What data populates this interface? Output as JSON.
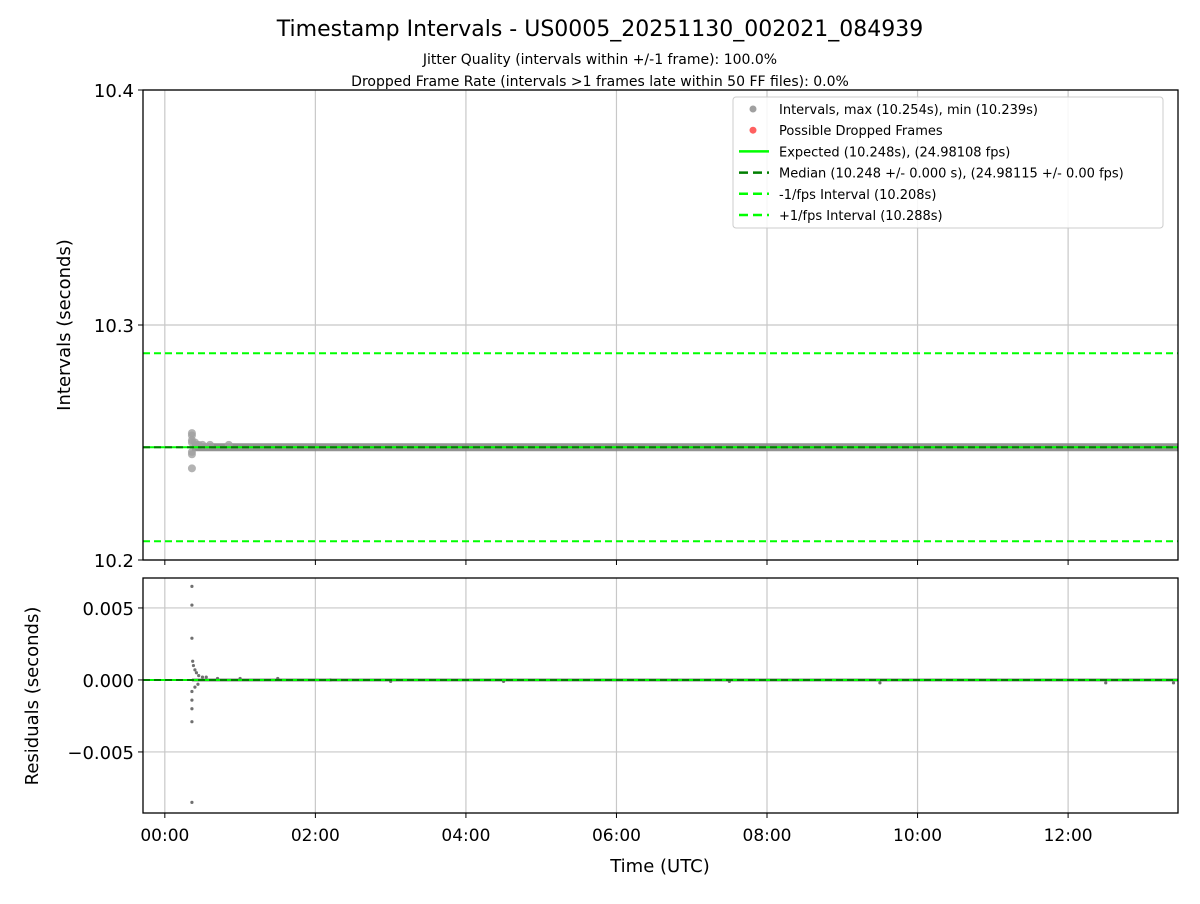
{
  "chart_data": [
    {
      "type": "scatter",
      "title": "Timestamp Intervals - US0005_20251130_002021_084939",
      "subtitle_1": "Jitter Quality (intervals within +/-1 frame): 100.0%",
      "subtitle_2": "Dropped Frame Rate (intervals >1 frames late within 50 FF files): 0.0%",
      "ylabel": "Intervals (seconds)",
      "ylim": [
        10.2,
        10.4
      ],
      "yticks": [
        {
          "v": 10.2,
          "label": "10.2"
        },
        {
          "v": 10.3,
          "label": "10.3"
        },
        {
          "v": 10.4,
          "label": "10.4"
        }
      ],
      "xlim_hours": [
        -0.29,
        13.46
      ],
      "grid": true,
      "legend_placement": "top-right",
      "legend": [
        {
          "label": "Intervals, max (10.254s), min (10.239s)",
          "kind": "dot",
          "color": "#a0a0a0"
        },
        {
          "label": "Possible Dropped Frames",
          "kind": "dot",
          "color": "#ff6060"
        },
        {
          "label": "Expected (10.248s), (24.98108 fps)",
          "kind": "solid",
          "color": "#00ff00"
        },
        {
          "label": "Median (10.248 +/- 0.000 s), (24.98115 +/- 0.00 fps)",
          "kind": "dash",
          "color": "#007f00"
        },
        {
          "label": "-1/fps Interval (10.208s)",
          "kind": "dash",
          "color": "#00ff00"
        },
        {
          "label": "+1/fps Interval (10.288s)",
          "kind": "dash",
          "color": "#00ff00"
        }
      ],
      "hlines": [
        {
          "name": "expected",
          "y": 10.248,
          "color": "#00ff00",
          "dash": false
        },
        {
          "name": "median",
          "y": 10.248,
          "color": "#007f00",
          "dash": true
        },
        {
          "name": "minus-1-fps",
          "y": 10.208,
          "color": "#00ff00",
          "dash": true
        },
        {
          "name": "plus-1-fps",
          "y": 10.288,
          "color": "#00ff00",
          "dash": true
        }
      ],
      "points": [
        {
          "t": 0.36,
          "y": 10.254
        },
        {
          "t": 0.36,
          "y": 10.253
        },
        {
          "t": 0.36,
          "y": 10.251
        },
        {
          "t": 0.36,
          "y": 10.25
        },
        {
          "t": 0.36,
          "y": 10.246
        },
        {
          "t": 0.36,
          "y": 10.245
        },
        {
          "t": 0.36,
          "y": 10.239
        },
        {
          "t": 0.4,
          "y": 10.25
        },
        {
          "t": 0.42,
          "y": 10.249
        },
        {
          "t": 0.45,
          "y": 10.249
        },
        {
          "t": 0.5,
          "y": 10.249
        },
        {
          "t": 0.6,
          "y": 10.249
        },
        {
          "t": 0.85,
          "y": 10.249
        }
      ],
      "band": {
        "t_start": 0.36,
        "t_end": 13.46,
        "y": 10.248,
        "color": "#808080"
      },
      "dropped_points": []
    },
    {
      "type": "scatter",
      "ylabel": "Residuals (seconds)",
      "xlabel": "Time (UTC)",
      "ylim": [
        -0.00924,
        0.00708
      ],
      "yticks": [
        {
          "v": 0.005,
          "label": "0.005"
        },
        {
          "v": 0.0,
          "label": "0.000"
        },
        {
          "v": -0.005,
          "label": "−0.005"
        }
      ],
      "xlim_hours": [
        -0.29,
        13.46
      ],
      "xticks": [
        {
          "v": 0,
          "label": "00:00"
        },
        {
          "v": 2,
          "label": "02:00"
        },
        {
          "v": 4,
          "label": "04:00"
        },
        {
          "v": 6,
          "label": "06:00"
        },
        {
          "v": 8,
          "label": "08:00"
        },
        {
          "v": 10,
          "label": "10:00"
        },
        {
          "v": 12,
          "label": "12:00"
        }
      ],
      "hlines": [
        {
          "name": "zero-expected",
          "y": 0,
          "color": "#00ff00",
          "dash": false
        },
        {
          "name": "zero-median",
          "y": 0,
          "color": "#007f00",
          "dash": true
        }
      ],
      "points": [
        {
          "t": 0.36,
          "y": 0.0065
        },
        {
          "t": 0.36,
          "y": 0.0052
        },
        {
          "t": 0.36,
          "y": 0.0029
        },
        {
          "t": 0.37,
          "y": 0.0013
        },
        {
          "t": 0.38,
          "y": 0.001
        },
        {
          "t": 0.4,
          "y": 0.0007
        },
        {
          "t": 0.42,
          "y": 0.0005
        },
        {
          "t": 0.45,
          "y": 0.0003
        },
        {
          "t": 0.5,
          "y": 0.0002
        },
        {
          "t": 0.36,
          "y": -0.0008
        },
        {
          "t": 0.36,
          "y": -0.0014
        },
        {
          "t": 0.36,
          "y": -0.002
        },
        {
          "t": 0.36,
          "y": -0.0029
        },
        {
          "t": 0.36,
          "y": -0.0085
        },
        {
          "t": 0.4,
          "y": -0.0005
        },
        {
          "t": 0.44,
          "y": -0.0003
        },
        {
          "t": 0.55,
          "y": 0.0002
        },
        {
          "t": 0.7,
          "y": 0.0001
        },
        {
          "t": 1.0,
          "y": 0.0001
        },
        {
          "t": 1.5,
          "y": 0.0001
        },
        {
          "t": 2.2,
          "y": 0.0
        },
        {
          "t": 3.0,
          "y": -0.0001
        },
        {
          "t": 4.5,
          "y": -0.0001
        },
        {
          "t": 7.5,
          "y": -0.0001
        },
        {
          "t": 9.5,
          "y": -0.0002
        },
        {
          "t": 12.5,
          "y": -0.0002
        },
        {
          "t": 13.4,
          "y": -0.0002
        }
      ],
      "band": {
        "t_start": 0.36,
        "t_end": 13.46,
        "y": 0.0,
        "color": "#707070"
      }
    }
  ]
}
